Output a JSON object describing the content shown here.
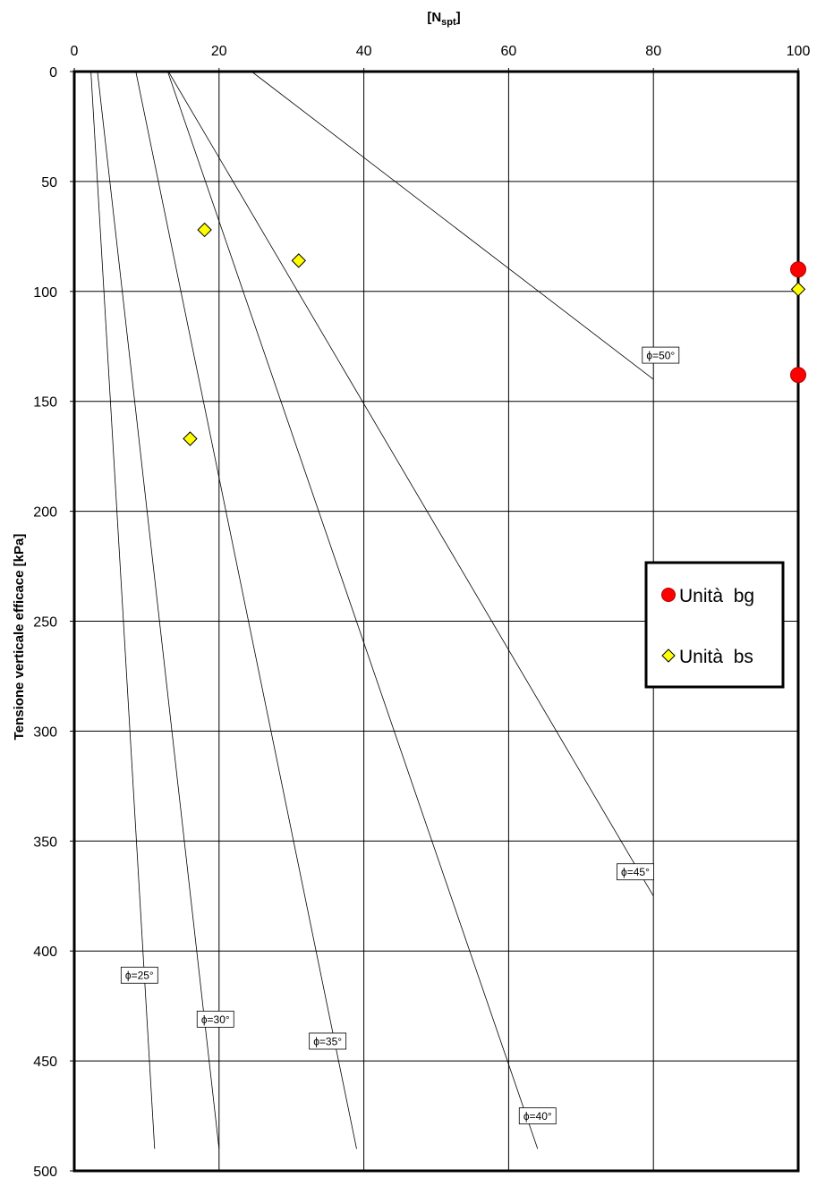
{
  "chart_data": {
    "type": "line",
    "xlabel": "N",
    "xlabel_sub": "spt",
    "ylabel": "Tensione verticale efficace [kPa]",
    "xlim": [
      0,
      100
    ],
    "ylim": [
      0,
      500
    ],
    "y_inverted": true,
    "x_axis_position": "top",
    "x_ticks": [
      0,
      20,
      40,
      60,
      80,
      100
    ],
    "y_ticks": [
      0,
      50,
      100,
      150,
      200,
      250,
      300,
      350,
      400,
      450,
      500
    ],
    "grid": true,
    "phi_curves": [
      {
        "label": "ϕ=25°",
        "x": [
          2.3,
          11.1
        ],
        "y": [
          0,
          490
        ],
        "label_at": [
          9.0,
          411
        ]
      },
      {
        "label": "ϕ=30°",
        "x": [
          3.2,
          20.0
        ],
        "y": [
          0,
          490
        ],
        "label_at": [
          19.5,
          431
        ]
      },
      {
        "label": "ϕ=35°",
        "x": [
          8.5,
          39.0
        ],
        "y": [
          0,
          490
        ],
        "label_at": [
          35.0,
          441
        ]
      },
      {
        "label": "ϕ=40°",
        "x": [
          12.9,
          64.0
        ],
        "y": [
          0,
          490
        ],
        "label_at": [
          64.0,
          475
        ]
      },
      {
        "label": "ϕ=45°",
        "x": [
          13.0,
          80.0
        ],
        "y": [
          0,
          375
        ],
        "label_at": [
          77.5,
          364
        ]
      },
      {
        "label": "ϕ=50°",
        "x": [
          24.5,
          80.0
        ],
        "y": [
          0,
          140
        ],
        "label_at": [
          81.0,
          129
        ]
      }
    ],
    "series": [
      {
        "name": "Unità  bg",
        "marker": "circle",
        "color": "#ff0000",
        "points": [
          [
            100,
            90
          ],
          [
            100,
            138
          ]
        ]
      },
      {
        "name": "Unità  bs",
        "marker": "diamond",
        "color": "#ffff00",
        "points": [
          [
            18,
            72
          ],
          [
            31,
            86
          ],
          [
            16,
            167
          ],
          [
            100,
            99
          ]
        ]
      }
    ],
    "legend": "right"
  }
}
